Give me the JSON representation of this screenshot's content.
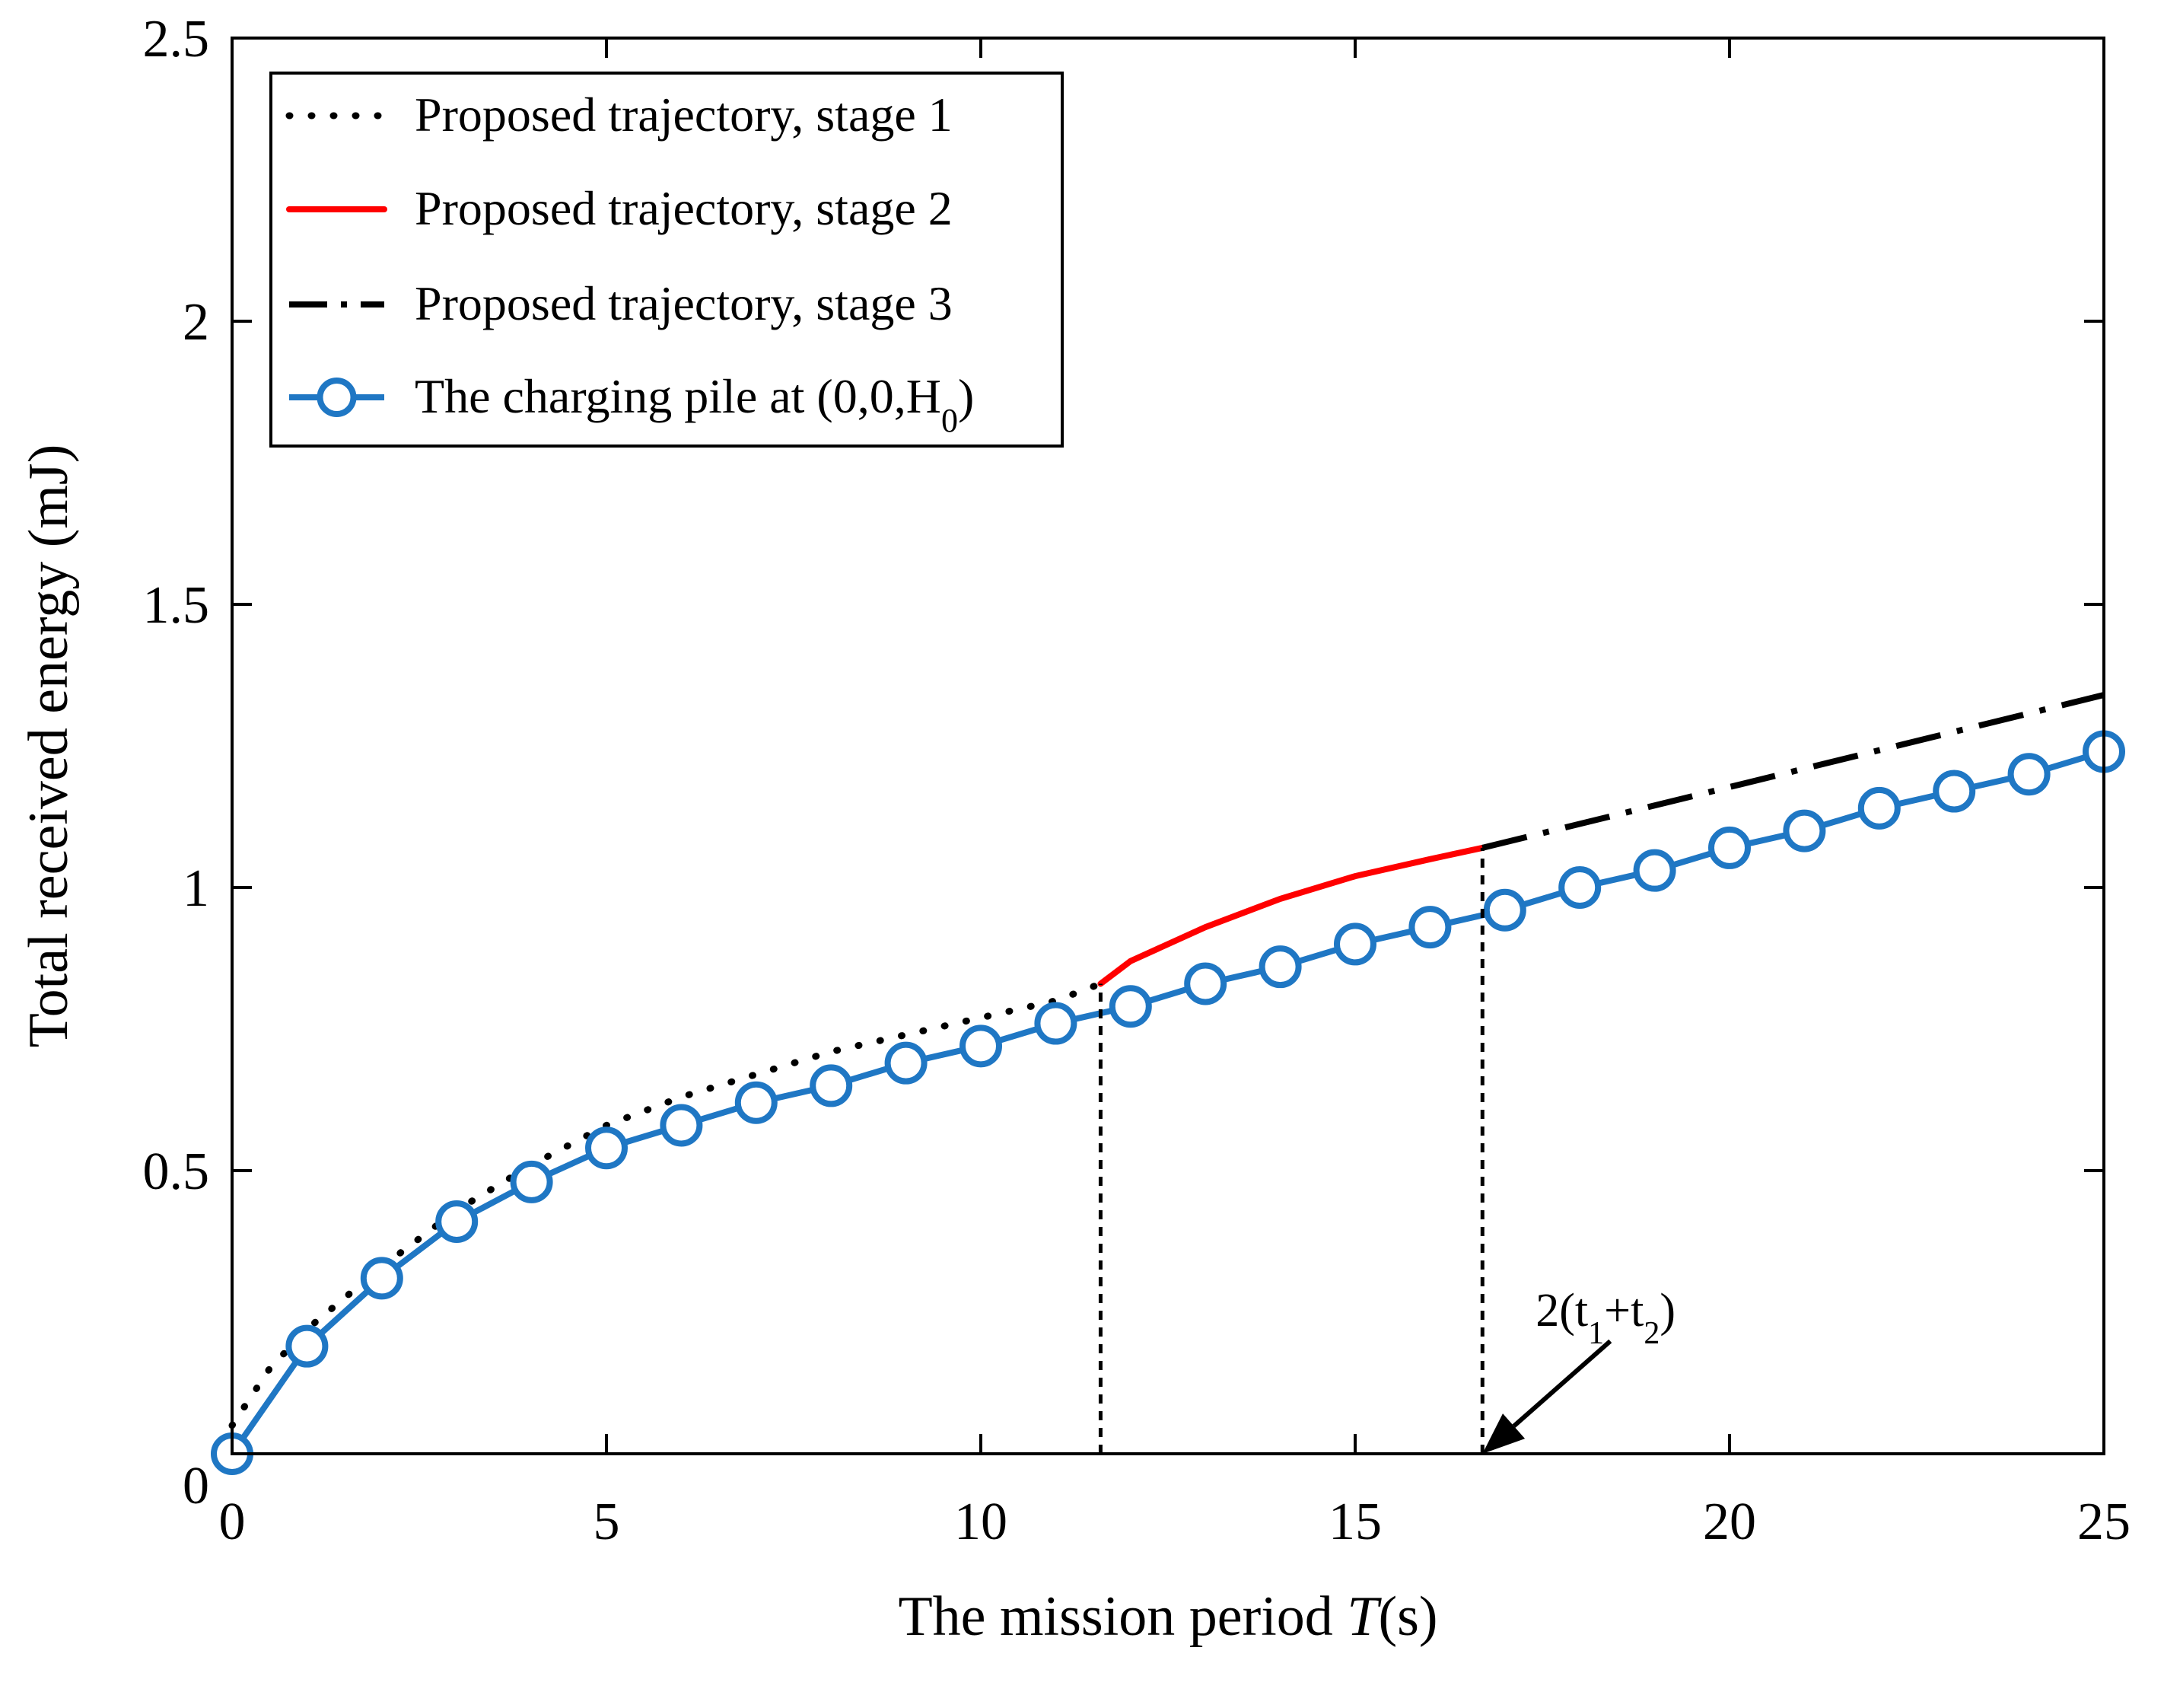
{
  "chart_data": {
    "type": "line",
    "xlabel": "The mission period ",
    "xlabel_var": "T",
    "xlabel_unit": "(s)",
    "ylabel": "Total received energy (mJ)",
    "xlim": [
      0,
      25
    ],
    "ylim": [
      0,
      2.5
    ],
    "xticks": [
      0,
      5,
      10,
      15,
      20,
      25
    ],
    "xtick_labels": [
      "0",
      "5",
      "10",
      "15",
      "20",
      "25"
    ],
    "yticks": [
      0,
      0.5,
      1,
      1.5,
      2,
      2.5
    ],
    "ytick_labels": [
      "0",
      "0.5",
      "1",
      "1.5",
      "2",
      "2.5"
    ],
    "grid": false,
    "legend_position": "top-left",
    "series": [
      {
        "name": "Proposed trajectory, stage 1",
        "style": "dotted",
        "color": "#000000",
        "x": [
          0,
          0.5,
          1,
          2,
          3,
          4,
          5,
          6,
          7,
          8,
          9,
          10,
          11,
          11.6
        ],
        "y": [
          0.05,
          0.15,
          0.22,
          0.33,
          0.43,
          0.51,
          0.58,
          0.63,
          0.67,
          0.71,
          0.74,
          0.77,
          0.8,
          0.83
        ]
      },
      {
        "name": "Proposed trajectory, stage 2",
        "style": "solid",
        "color": "#ff0000",
        "x": [
          11.6,
          12,
          13,
          14,
          15,
          16,
          16.7
        ],
        "y": [
          0.83,
          0.87,
          0.93,
          0.98,
          1.02,
          1.05,
          1.07
        ]
      },
      {
        "name": "Proposed trajectory, stage 3",
        "style": "dashdot",
        "color": "#000000",
        "x": [
          16.7,
          25
        ],
        "y": [
          1.07,
          1.34
        ]
      },
      {
        "name": "The charging pile at (0,0,H",
        "name_sub": "0",
        "name_tail": ")",
        "style": "solid-marker",
        "color": "#1f77c4",
        "x": [
          0,
          1,
          2,
          3,
          4,
          5,
          6,
          7,
          8,
          9,
          10,
          11,
          12,
          13,
          14,
          15,
          16,
          17,
          18,
          19,
          20,
          21,
          22,
          23,
          24,
          25
        ],
        "y": [
          0.0,
          0.19,
          0.31,
          0.41,
          0.48,
          0.54,
          0.58,
          0.62,
          0.65,
          0.69,
          0.72,
          0.76,
          0.79,
          0.83,
          0.86,
          0.9,
          0.93,
          0.96,
          1.0,
          1.03,
          1.07,
          1.1,
          1.14,
          1.17,
          1.2,
          1.24
        ]
      }
    ],
    "vlines": [
      {
        "x": 11.6,
        "y_top": 0.83
      },
      {
        "x": 16.7,
        "y_top": 1.07
      }
    ],
    "annotation": {
      "text": "2(t",
      "sub1": "1",
      "mid": "+t",
      "sub2": "2",
      "tail": ")",
      "points_to_x": 16.7,
      "points_to_y": 0.0
    }
  }
}
